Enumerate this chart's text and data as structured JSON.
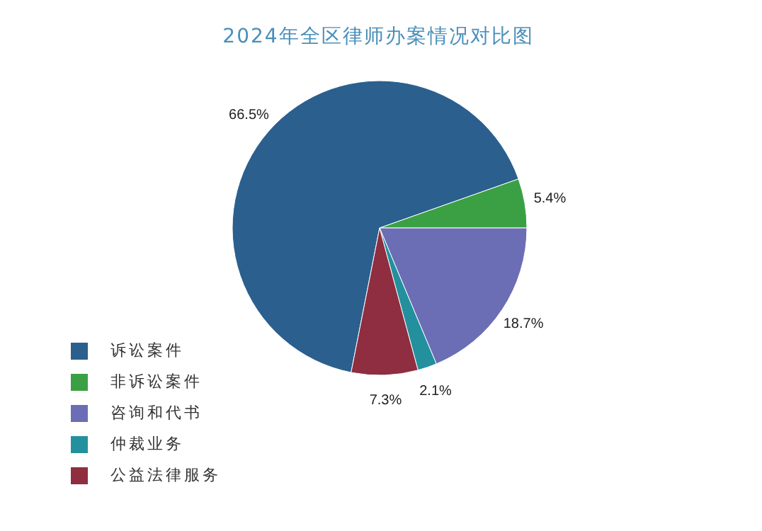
{
  "chart_data": {
    "type": "pie",
    "title": "2024年全区律师办案情况对比图",
    "categories": [
      "诉讼案件",
      "非诉讼案件",
      "咨询和代书",
      "仲裁业务",
      "公益法律服务"
    ],
    "values": [
      66.5,
      5.4,
      18.7,
      2.1,
      7.3
    ],
    "colors": [
      "#2b5f8e",
      "#3aa043",
      "#6b6db5",
      "#23909e",
      "#8e2e40"
    ],
    "value_labels": [
      "66.5%",
      "5.4%",
      "18.7%",
      "2.1%",
      "7.3%"
    ],
    "legend": "bottom left"
  }
}
